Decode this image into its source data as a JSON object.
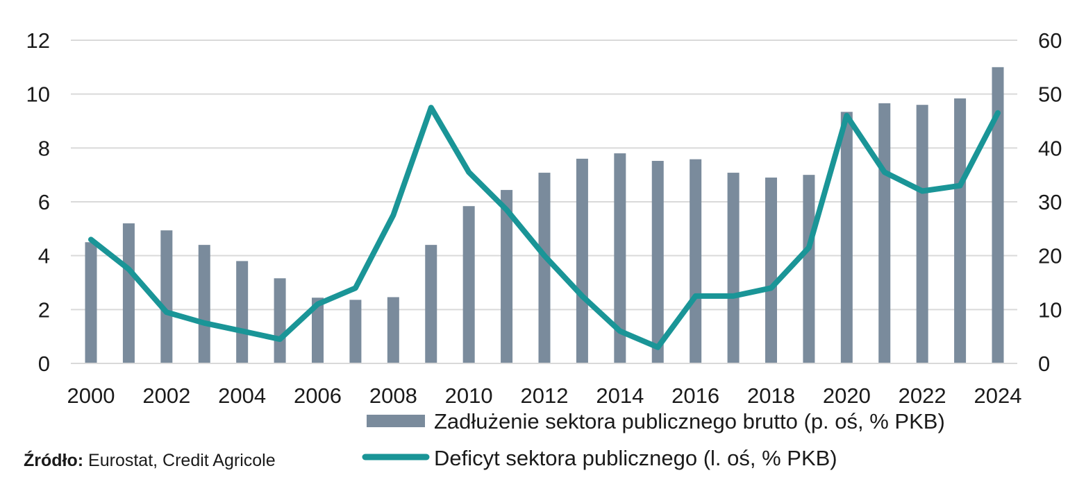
{
  "chart_data": {
    "type": "bar+line",
    "x": [
      "2000",
      "2001",
      "2002",
      "2003",
      "2004",
      "2005",
      "2006",
      "2007",
      "2008",
      "2009",
      "2010",
      "2011",
      "2012",
      "2013",
      "2014",
      "2015",
      "2016",
      "2017",
      "2018",
      "2019",
      "2020",
      "2021",
      "2022",
      "2023",
      "2024"
    ],
    "x_tick_labels": [
      "2000",
      "2002",
      "2004",
      "2006",
      "2008",
      "2010",
      "2012",
      "2014",
      "2016",
      "2018",
      "2020",
      "2022",
      "2024"
    ],
    "series": [
      {
        "name": "Zadłużenie sektora publicznego brutto (p. oś, % PKB)",
        "kind": "bar",
        "axis": "right",
        "color": "#7a8b9c",
        "values": [
          22.5,
          26.0,
          24.7,
          22.0,
          19.0,
          15.8,
          12.2,
          11.8,
          12.3,
          22.0,
          29.2,
          32.2,
          35.4,
          38.0,
          39.0,
          37.6,
          37.9,
          35.4,
          34.5,
          35.0,
          46.7,
          48.3,
          48.0,
          49.2,
          55.0
        ]
      },
      {
        "name": "Deficyt sektora publicznego (l. oś, % PKB)",
        "kind": "line",
        "axis": "left",
        "color": "#1a9597",
        "values": [
          4.6,
          3.5,
          1.9,
          1.5,
          1.2,
          0.9,
          2.2,
          2.8,
          5.5,
          9.5,
          7.1,
          5.7,
          4.0,
          2.5,
          1.2,
          0.6,
          2.5,
          2.5,
          2.8,
          4.3,
          9.2,
          7.1,
          6.4,
          6.6,
          9.3
        ]
      }
    ],
    "left_axis": {
      "min": 0,
      "max": 12,
      "ticks": [
        "0",
        "2",
        "4",
        "6",
        "8",
        "10",
        "12"
      ]
    },
    "right_axis": {
      "min": 0,
      "max": 60,
      "ticks": [
        "0",
        "10",
        "20",
        "30",
        "40",
        "50",
        "60"
      ]
    },
    "grid": true,
    "legend_position": "bottom-right",
    "title": ""
  },
  "source": {
    "label": "Źródło:",
    "text": " Eurostat, Credit Agricole"
  }
}
